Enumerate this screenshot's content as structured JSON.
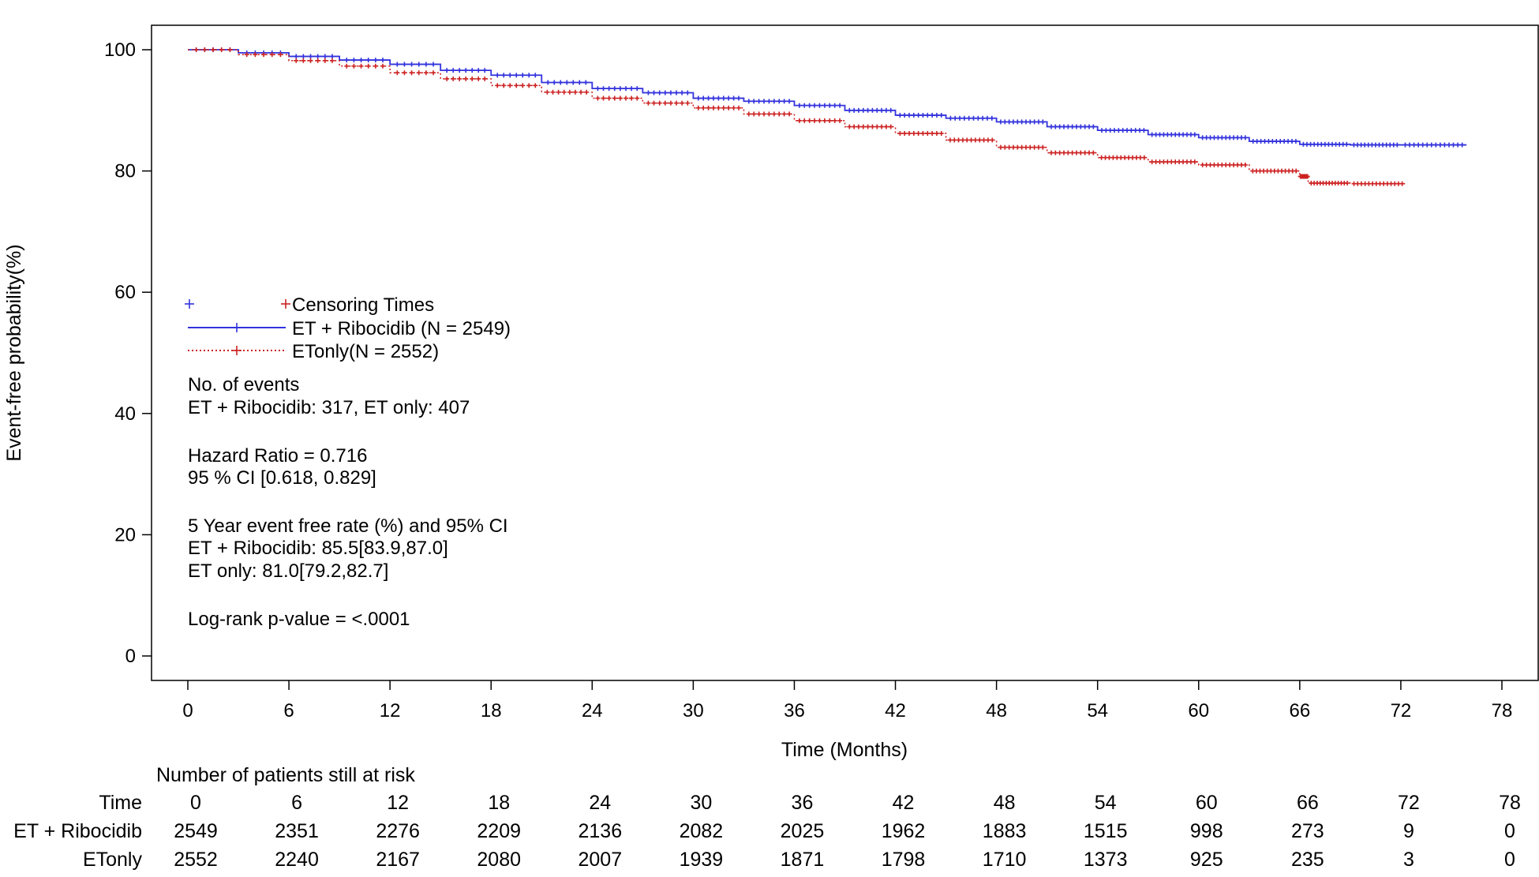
{
  "chart_data": {
    "type": "line",
    "title": "",
    "xlabel": "Time (Months)",
    "ylabel": "Event-free probability(%)",
    "xlim": [
      0,
      78
    ],
    "ylim": [
      0,
      100
    ],
    "x_ticks": [
      0,
      6,
      12,
      18,
      24,
      30,
      36,
      42,
      48,
      54,
      60,
      66,
      72,
      78
    ],
    "y_ticks": [
      0,
      20,
      40,
      60,
      80,
      100
    ],
    "grid": false,
    "legend": {
      "placement": "left",
      "censor_label": "Censoring Times",
      "entries": [
        {
          "label": "ET + Ribocidib (N = 2549)",
          "color": "#3333dd",
          "style": "solid"
        },
        {
          "label": "ETonly(N = 2552)",
          "color": "#cc2222",
          "style": "dotted"
        }
      ]
    },
    "series": [
      {
        "name": "ET + Ribocidib (N = 2549)",
        "color": "#3333dd",
        "x": [
          0,
          3,
          6,
          9,
          12,
          15,
          18,
          21,
          24,
          27,
          30,
          33,
          36,
          39,
          42,
          45,
          48,
          51,
          54,
          57,
          60,
          63,
          66,
          69,
          72,
          75.9
        ],
        "y": [
          100,
          99.5,
          98.9,
          98.3,
          97.6,
          96.6,
          95.8,
          94.6,
          93.6,
          92.9,
          92.0,
          91.5,
          90.8,
          90.0,
          89.2,
          88.7,
          88.1,
          87.3,
          86.7,
          86.0,
          85.5,
          84.9,
          84.4,
          84.3,
          84.3,
          84.3
        ]
      },
      {
        "name": "ETonly(N = 2552)",
        "color": "#cc2222",
        "x": [
          0,
          3,
          6,
          9,
          12,
          15,
          18,
          21,
          24,
          27,
          30,
          33,
          36,
          39,
          42,
          45,
          48,
          51,
          54,
          57,
          60,
          63,
          66,
          66.5,
          69,
          72.3
        ],
        "y": [
          100,
          99.2,
          98.2,
          97.3,
          96.2,
          95.2,
          94.1,
          93.0,
          92.0,
          91.2,
          90.4,
          89.4,
          88.3,
          87.3,
          86.2,
          85.1,
          83.9,
          83.0,
          82.2,
          81.5,
          81.0,
          80.0,
          79.1,
          78.0,
          77.9,
          77.9
        ]
      }
    ],
    "annotations": [
      "No. of events",
      "ET + Ribocidib: 317, ET only: 407",
      "Hazard Ratio = 0.716",
      "95 % CI [0.618, 0.829]",
      "5 Year event free rate (%) and 95% CI",
      "ET + Ribocidib: 85.5[83.9,87.0]",
      "ET only: 81.0[79.2,82.7]",
      "Log-rank p-value = <.0001"
    ],
    "risk_table": {
      "title": "Number of patients still at risk",
      "header_label": "Time",
      "times": [
        0,
        6,
        12,
        18,
        24,
        30,
        36,
        42,
        48,
        54,
        60,
        66,
        72,
        78
      ],
      "rows": [
        {
          "label": "ET + Ribocidib",
          "values": [
            2549,
            2351,
            2276,
            2209,
            2136,
            2082,
            2025,
            1962,
            1883,
            1515,
            998,
            273,
            9,
            0
          ]
        },
        {
          "label": "ETonly",
          "values": [
            2552,
            2240,
            2167,
            2080,
            2007,
            1939,
            1871,
            1798,
            1710,
            1373,
            925,
            235,
            3,
            0
          ]
        }
      ]
    }
  }
}
